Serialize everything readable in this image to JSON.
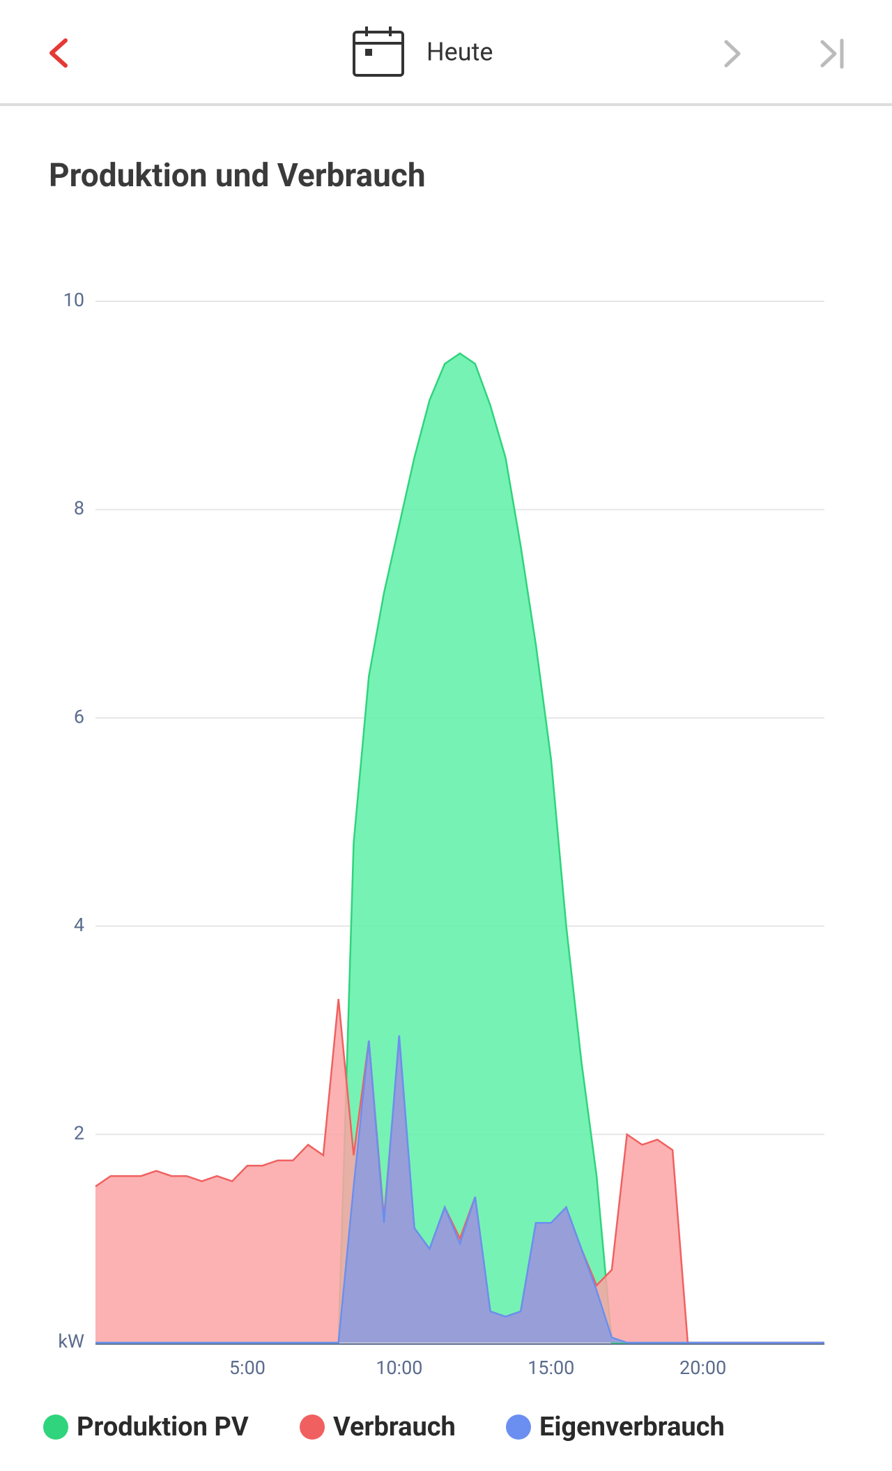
{
  "header": {
    "title": "Heute"
  },
  "chart_data": {
    "type": "area",
    "title": "Produktion und Verbrauch",
    "x": [
      0,
      0.5,
      1,
      1.5,
      2,
      2.5,
      3,
      3.5,
      4,
      4.5,
      5,
      5.5,
      6,
      6.5,
      7,
      7.5,
      8,
      8.5,
      9,
      9.5,
      10,
      10.5,
      11,
      11.5,
      12,
      12.5,
      13,
      13.5,
      14,
      14.5,
      15,
      15.5,
      16,
      16.5,
      17,
      17.5,
      18,
      18.5,
      19,
      19.5,
      20,
      20.5,
      21,
      21.5,
      22,
      22.5,
      23,
      23.5,
      24
    ],
    "series": [
      {
        "name": "Produktion PV",
        "color": "#2fd47c",
        "fill": "#5ef0a8",
        "values": [
          0,
          0,
          0,
          0,
          0,
          0,
          0,
          0,
          0,
          0,
          0,
          0,
          0,
          0,
          0,
          0,
          0,
          4.8,
          6.4,
          7.2,
          7.85,
          8.5,
          9.05,
          9.4,
          9.5,
          9.4,
          9.0,
          8.5,
          7.65,
          6.7,
          5.6,
          4.0,
          2.7,
          1.6,
          0,
          0,
          0,
          0,
          0,
          0,
          0,
          0,
          0,
          0,
          0,
          0,
          0,
          0,
          0
        ]
      },
      {
        "name": "Verbrauch",
        "color": "#f06060",
        "fill": "#fca5a5",
        "values": [
          1.5,
          1.6,
          1.6,
          1.6,
          1.65,
          1.6,
          1.6,
          1.55,
          1.6,
          1.55,
          1.7,
          1.7,
          1.75,
          1.75,
          1.9,
          1.8,
          3.3,
          1.8,
          2.9,
          1.2,
          2.9,
          1.1,
          0.9,
          1.3,
          1.0,
          1.4,
          0.3,
          0.25,
          0.3,
          1.15,
          1.15,
          1.3,
          0.9,
          0.55,
          0.7,
          2.0,
          1.9,
          1.95,
          1.85,
          0,
          0,
          0,
          0,
          0,
          0,
          0,
          0,
          0,
          0
        ]
      },
      {
        "name": "Eigenverbrauch",
        "color": "#6b8ff0",
        "fill": "#8a9ce0",
        "values": [
          0,
          0,
          0,
          0,
          0,
          0,
          0,
          0,
          0,
          0,
          0,
          0,
          0,
          0,
          0,
          0,
          0,
          1.5,
          2.9,
          1.15,
          2.95,
          1.1,
          0.9,
          1.3,
          0.95,
          1.4,
          0.3,
          0.25,
          0.3,
          1.15,
          1.15,
          1.3,
          0.9,
          0.5,
          0.05,
          0,
          0,
          0,
          0,
          0,
          0,
          0,
          0,
          0,
          0,
          0,
          0,
          0,
          0
        ]
      }
    ],
    "xlim": [
      0,
      24
    ],
    "xticks": [
      {
        "value": 5,
        "label": "5:00"
      },
      {
        "value": 10,
        "label": "10:00"
      },
      {
        "value": 15,
        "label": "15:00"
      },
      {
        "value": 20,
        "label": "20:00"
      }
    ],
    "ylim": [
      0,
      10
    ],
    "yticks": [
      {
        "value": 0,
        "label": "kW"
      },
      2,
      4,
      6,
      8,
      10
    ],
    "grid": true
  }
}
